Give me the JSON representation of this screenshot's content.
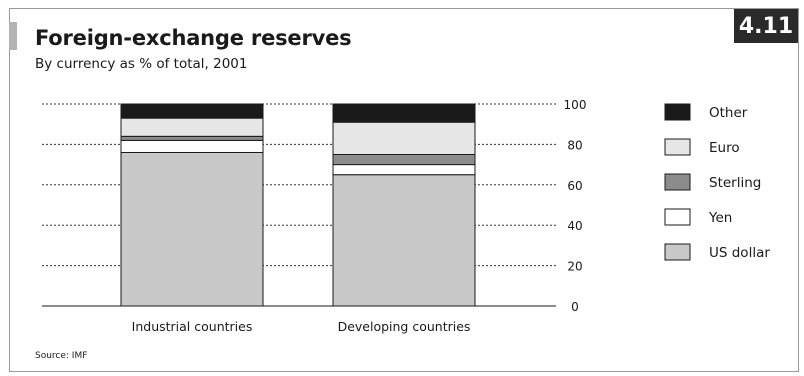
{
  "chart": {
    "badge": "4.11",
    "title": "Foreign-exchange reserves",
    "subtitle": "By currency as % of total, 2001",
    "source": "Source: IMF"
  },
  "chart_data": {
    "type": "bar",
    "stacked": true,
    "categories": [
      "Industrial countries",
      "Developing countries"
    ],
    "series": [
      {
        "name": "US dollar",
        "values": [
          76,
          65
        ],
        "color": "#c8c8c8"
      },
      {
        "name": "Yen",
        "values": [
          6,
          5
        ],
        "color": "#ffffff"
      },
      {
        "name": "Sterling",
        "values": [
          2,
          5
        ],
        "color": "#8c8c8c"
      },
      {
        "name": "Euro",
        "values": [
          9,
          16
        ],
        "color": "#e6e6e6"
      },
      {
        "name": "Other",
        "values": [
          7,
          9
        ],
        "color": "#1a1a1a"
      }
    ],
    "legend_order": [
      "Other",
      "Euro",
      "Sterling",
      "Yen",
      "US dollar"
    ],
    "ylim": [
      0,
      100
    ],
    "yticks": [
      0,
      20,
      40,
      60,
      80,
      100
    ],
    "grid": "dotted",
    "y_axis_position": "right",
    "legend_position": "right"
  }
}
